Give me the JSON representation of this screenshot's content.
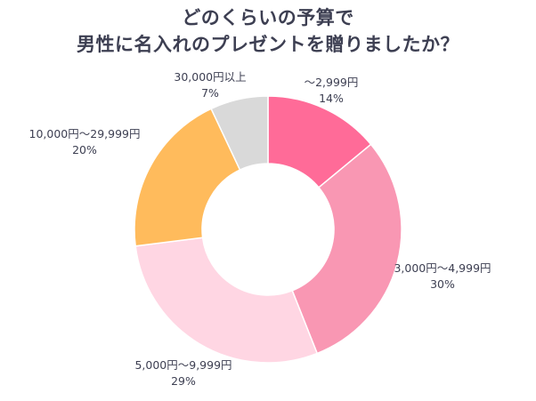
{
  "chart_data": {
    "type": "pie",
    "title_lines": [
      "どのくらいの予算で",
      "男性に名入れのプレゼントを贈りましたか？"
    ],
    "slices": [
      {
        "label": "～2,999円",
        "percent": "14%",
        "value": 14,
        "color": "#ff6b98"
      },
      {
        "label": "3,000円～4,999円",
        "percent": "30%",
        "value": 30,
        "color": "#f997b3"
      },
      {
        "label": "5,000円～9,999円",
        "percent": "29%",
        "value": 29,
        "color": "#ffd6e3"
      },
      {
        "label": "10,000円～29,999円",
        "percent": "20%",
        "value": 20,
        "color": "#ffbb5c"
      },
      {
        "label": "30,000円以上",
        "percent": "7%",
        "value": 7,
        "color": "#d9d9d9"
      }
    ]
  }
}
